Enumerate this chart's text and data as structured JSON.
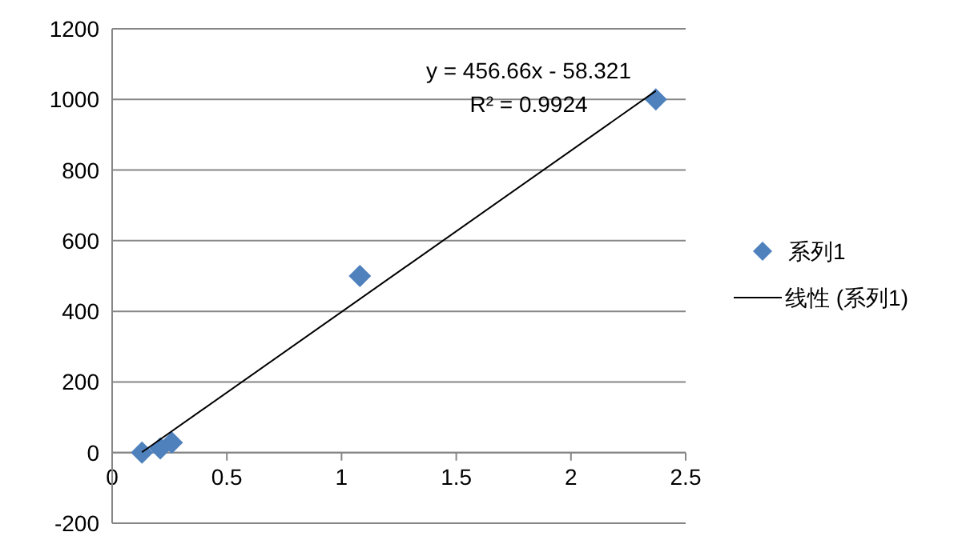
{
  "chart_data": {
    "type": "scatter",
    "xlim": [
      0,
      2.5
    ],
    "xticks": [
      0,
      0.5,
      1,
      1.5,
      2,
      2.5
    ],
    "ylim": [
      -200,
      1200
    ],
    "yticks": [
      -200,
      0,
      200,
      400,
      600,
      800,
      1000,
      1200
    ],
    "grid": "y",
    "legend": "right",
    "annotations": [
      "y = 456.66x - 58.321",
      "R² = 0.9924"
    ],
    "series": [
      {
        "name": "系列1",
        "color": "#4f81bd",
        "marker": "diamond",
        "x": [
          0.13,
          0.21,
          0.26,
          1.08,
          2.37
        ],
        "values": [
          0,
          12,
          28,
          500,
          1000
        ]
      },
      {
        "name": "线性 (系列1)",
        "type": "line",
        "color": "#000000",
        "marker": "none",
        "x": [
          0.13,
          2.37
        ],
        "values": [
          1,
          1024
        ]
      }
    ]
  }
}
